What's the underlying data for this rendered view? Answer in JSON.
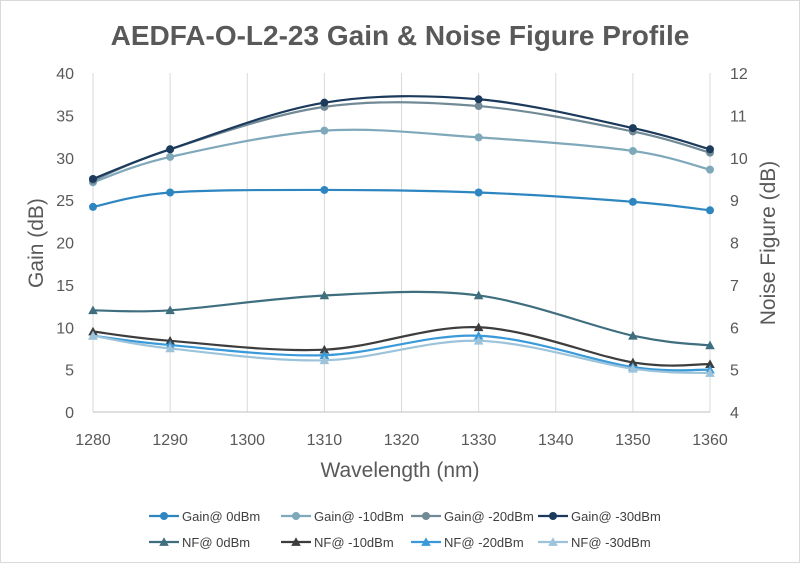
{
  "chart_data": {
    "type": "line",
    "title": "AEDFA-O-L2-23 Gain & Noise Figure Profile",
    "xlabel": "Wavelength (nm)",
    "ylabel": "Gain (dB)",
    "y2label": "Noise Figure (dB)",
    "x": [
      1280,
      1290,
      1310,
      1330,
      1350,
      1360
    ],
    "xlim": [
      1280,
      1360
    ],
    "xticks": [
      "1280",
      "1290",
      "1300",
      "1310",
      "1320",
      "1330",
      "1340",
      "1350",
      "1360"
    ],
    "ylim": [
      0,
      40
    ],
    "yticks": [
      "0",
      "5",
      "10",
      "15",
      "20",
      "25",
      "30",
      "35",
      "40"
    ],
    "y2lim": [
      4,
      12
    ],
    "y2ticks": [
      "4",
      "5",
      "6",
      "7",
      "8",
      "9",
      "10",
      "11",
      "12"
    ],
    "grid": "vertical",
    "legend_position": "bottom",
    "series": [
      {
        "name": "Gain@ 0dBm",
        "axis": "left",
        "marker": "circle",
        "color": "#2e86c1",
        "values": [
          24.2,
          25.9,
          26.2,
          25.9,
          24.8,
          23.8
        ]
      },
      {
        "name": "Gain@ -10dBm",
        "axis": "left",
        "marker": "circle",
        "color": "#7fa8bb",
        "values": [
          27.1,
          30.1,
          33.2,
          32.4,
          30.8,
          28.6
        ]
      },
      {
        "name": "Gain@ -20dBm",
        "axis": "left",
        "marker": "circle",
        "color": "#728a96",
        "values": [
          27.3,
          31.0,
          36.0,
          36.1,
          33.1,
          30.6
        ]
      },
      {
        "name": "Gain@ -30dBm",
        "axis": "left",
        "marker": "circle",
        "color": "#1b3a5c",
        "values": [
          27.5,
          31.0,
          36.5,
          36.9,
          33.5,
          31.0
        ]
      },
      {
        "name": "NF@ 0dBm",
        "axis": "right",
        "marker": "triangle",
        "color": "#3f6f7f",
        "values": [
          6.4,
          6.4,
          6.75,
          6.75,
          5.8,
          5.57
        ]
      },
      {
        "name": "NF@ -10dBm",
        "axis": "right",
        "marker": "triangle",
        "color": "#3d3d3d",
        "values": [
          5.9,
          5.68,
          5.47,
          6.0,
          5.17,
          5.13
        ]
      },
      {
        "name": "NF@ -20dBm",
        "axis": "right",
        "marker": "triangle",
        "color": "#3a9ad9",
        "values": [
          5.8,
          5.58,
          5.34,
          5.8,
          5.06,
          5.0
        ]
      },
      {
        "name": "NF@ -30dBm",
        "axis": "right",
        "marker": "triangle",
        "color": "#9cc3d9",
        "values": [
          5.8,
          5.5,
          5.22,
          5.68,
          5.02,
          4.92
        ]
      }
    ]
  }
}
